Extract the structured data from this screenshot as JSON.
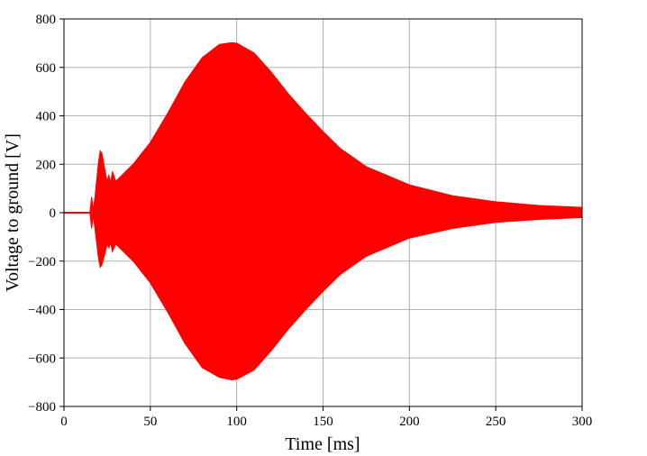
{
  "chart_data": {
    "type": "area",
    "xlabel": "Time [ms]",
    "ylabel": "Voltage to ground [V]",
    "xlim": [
      0,
      300
    ],
    "ylim": [
      -800,
      800
    ],
    "xticks": [
      0,
      50,
      100,
      150,
      200,
      250,
      300
    ],
    "yticks": [
      -800,
      -600,
      -400,
      -200,
      0,
      200,
      400,
      600,
      800
    ],
    "xtick_labels": [
      "0",
      "50",
      "100",
      "150",
      "200",
      "250",
      "300"
    ],
    "ytick_labels": [
      "−800",
      "−600",
      "−400",
      "−200",
      "0",
      "200",
      "400",
      "600",
      "800"
    ],
    "grid": true,
    "series": [
      {
        "color": "#ff0000",
        "x": [
          0,
          15,
          16,
          17,
          18,
          20,
          21,
          22,
          24,
          25,
          26,
          27,
          28,
          30,
          40,
          50,
          60,
          70,
          80,
          90,
          97,
          100,
          110,
          120,
          130,
          140,
          150,
          160,
          175,
          200,
          225,
          250,
          275,
          300
        ],
        "upper": [
          0,
          0,
          65,
          10,
          70,
          210,
          255,
          245,
          165,
          130,
          155,
          125,
          170,
          130,
          200,
          290,
          410,
          540,
          640,
          695,
          702,
          700,
          660,
          580,
          490,
          410,
          335,
          265,
          190,
          115,
          70,
          45,
          30,
          22
        ],
        "lower": [
          0,
          0,
          -65,
          -10,
          -70,
          -190,
          -225,
          -215,
          -160,
          -130,
          -145,
          -125,
          -160,
          -130,
          -200,
          -290,
          -410,
          -540,
          -640,
          -680,
          -690,
          -688,
          -650,
          -570,
          -480,
          -400,
          -325,
          -255,
          -180,
          -105,
          -65,
          -40,
          -28,
          -20
        ]
      }
    ]
  }
}
